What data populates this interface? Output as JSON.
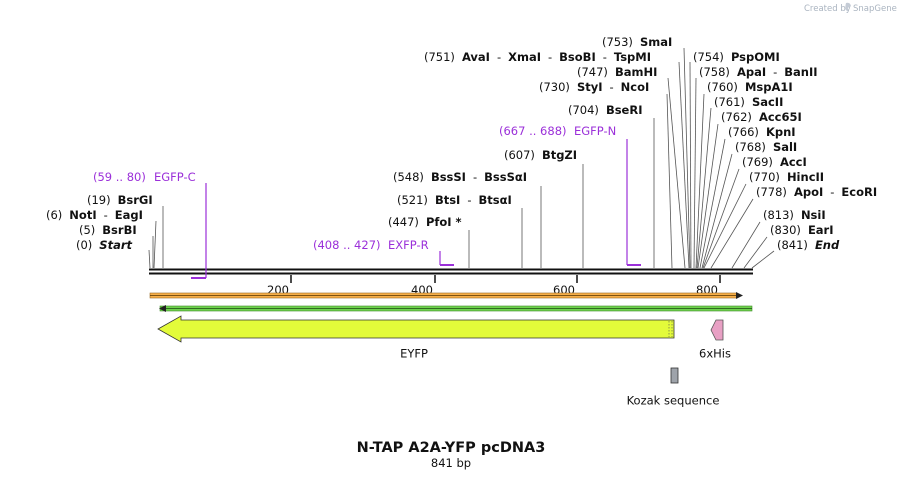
{
  "brand": {
    "created_by": "Created by",
    "app_name": "SnapGene"
  },
  "title": {
    "name": "N-TAP A2A-YFP pcDNA3",
    "length": "841 bp"
  },
  "scale": {
    "ticks": [
      "200",
      "400",
      "600",
      "800"
    ]
  },
  "sites": [
    {
      "pos": "(0)",
      "parts": [
        {
          "name": "Start",
          "italic": true
        }
      ]
    },
    {
      "pos": "(5)",
      "parts": [
        {
          "name": "BsrBI"
        }
      ]
    },
    {
      "pos": "(6)",
      "parts": [
        {
          "name": "NotI"
        },
        {
          "name": "EagI"
        }
      ]
    },
    {
      "pos": "(19)",
      "parts": [
        {
          "name": "BsrGI"
        }
      ]
    },
    {
      "pos": "(447)",
      "parts": [
        {
          "name": "PfoI *"
        }
      ]
    },
    {
      "pos": "(521)",
      "parts": [
        {
          "name": "BtsI"
        },
        {
          "name": "BtsαI"
        }
      ]
    },
    {
      "pos": "(548)",
      "parts": [
        {
          "name": "BssSI"
        },
        {
          "name": "BssSαI"
        }
      ]
    },
    {
      "pos": "(607)",
      "parts": [
        {
          "name": "BtgZI"
        }
      ]
    },
    {
      "pos": "(704)",
      "parts": [
        {
          "name": "BseRI"
        }
      ]
    },
    {
      "pos": "(730)",
      "parts": [
        {
          "name": "StyI"
        },
        {
          "name": "NcoI"
        }
      ]
    },
    {
      "pos": "(747)",
      "parts": [
        {
          "name": "BamHI"
        }
      ]
    },
    {
      "pos": "(751)",
      "parts": [
        {
          "name": "AvaI"
        },
        {
          "name": "XmaI"
        },
        {
          "name": "BsoBI"
        },
        {
          "name": "TspMI"
        }
      ]
    },
    {
      "pos": "(753)",
      "parts": [
        {
          "name": "SmaI"
        }
      ]
    },
    {
      "pos": "(754)",
      "parts": [
        {
          "name": "PspOMI"
        }
      ]
    },
    {
      "pos": "(758)",
      "parts": [
        {
          "name": "ApaI"
        },
        {
          "name": "BanII"
        }
      ]
    },
    {
      "pos": "(760)",
      "parts": [
        {
          "name": "MspA1I"
        }
      ]
    },
    {
      "pos": "(761)",
      "parts": [
        {
          "name": "SacII"
        }
      ]
    },
    {
      "pos": "(762)",
      "parts": [
        {
          "name": "Acc65I"
        }
      ]
    },
    {
      "pos": "(766)",
      "parts": [
        {
          "name": "KpnI"
        }
      ]
    },
    {
      "pos": "(768)",
      "parts": [
        {
          "name": "SalI"
        }
      ]
    },
    {
      "pos": "(769)",
      "parts": [
        {
          "name": "AccI"
        }
      ]
    },
    {
      "pos": "(770)",
      "parts": [
        {
          "name": "HincII"
        }
      ]
    },
    {
      "pos": "(778)",
      "parts": [
        {
          "name": "ApoI"
        },
        {
          "name": "EcoRI"
        }
      ]
    },
    {
      "pos": "(813)",
      "parts": [
        {
          "name": "NsiI"
        }
      ]
    },
    {
      "pos": "(830)",
      "parts": [
        {
          "name": "EarI"
        }
      ]
    },
    {
      "pos": "(841)",
      "parts": [
        {
          "name": "End",
          "italic": true
        }
      ]
    }
  ],
  "primers": [
    {
      "range": "(59 .. 80)",
      "name": "EGFP-C"
    },
    {
      "range": "(408 .. 427)",
      "name": "EXFP-R"
    },
    {
      "range": "(667 .. 688)",
      "name": "EGFP-N"
    }
  ],
  "features": [
    {
      "name": "EYFP",
      "color": "#e3fb3a"
    },
    {
      "name": "6xHis",
      "color": "#e8a0c4"
    },
    {
      "name": "Kozak sequence",
      "color": "#9ea3aa"
    }
  ],
  "colors": {
    "primer": "#9b30d9",
    "orange_strand": "#f7b04a",
    "green_strand": "#6ed14d",
    "backbone": "#111111"
  }
}
